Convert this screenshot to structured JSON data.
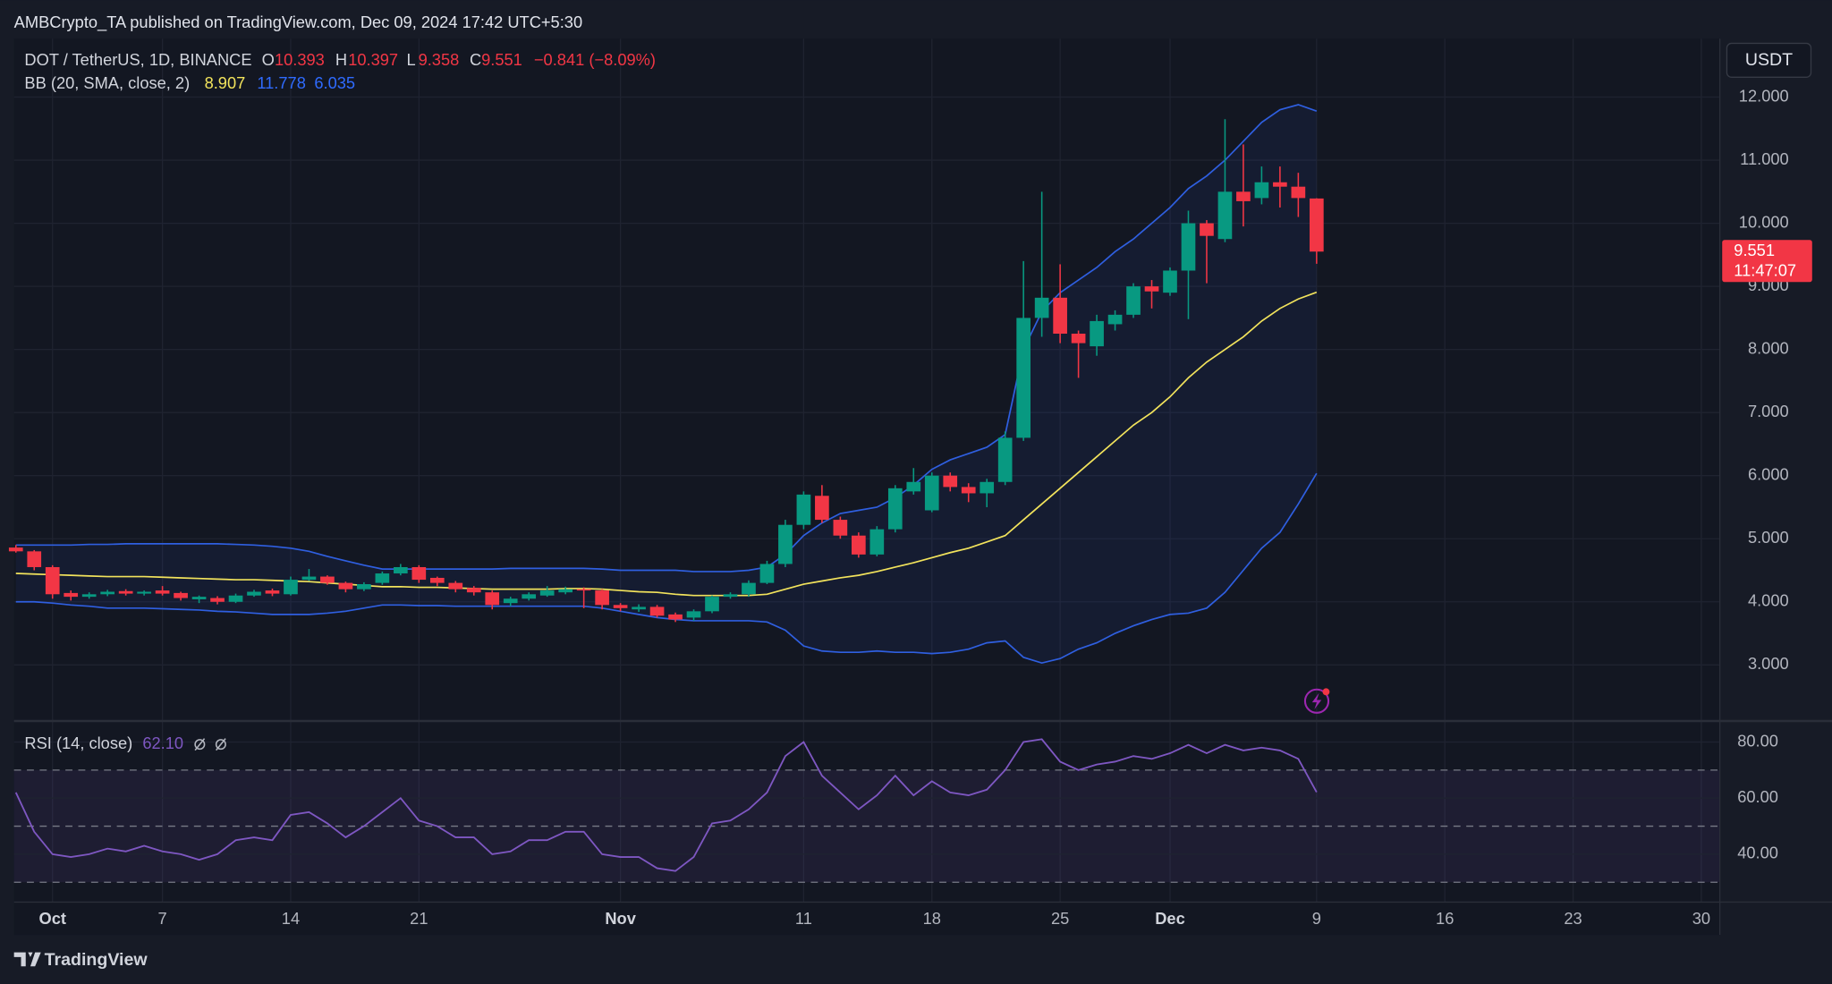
{
  "header": {
    "published": "AMBCrypto_TA published on TradingView.com, Dec 09, 2024 17:42 UTC+5:30"
  },
  "chart_data": [
    {
      "type": "candlestick",
      "title": "DOT / TetherUS, 1D, BINANCE",
      "currency": "USDT",
      "categories": [
        null,
        null,
        "Oct",
        null,
        null,
        null,
        null,
        null,
        "7",
        null,
        null,
        null,
        null,
        null,
        null,
        "14",
        null,
        null,
        null,
        null,
        null,
        null,
        "21",
        null,
        null,
        null,
        null,
        null,
        null,
        null,
        null,
        null,
        null,
        "Nov",
        null,
        null,
        null,
        null,
        null,
        null,
        null,
        null,
        null,
        "11",
        null,
        null,
        null,
        null,
        null,
        null,
        "18",
        null,
        null,
        null,
        null,
        null,
        null,
        "25",
        null,
        null,
        null,
        null,
        null,
        "Dec",
        null,
        null,
        null,
        null,
        null,
        null,
        null,
        "9",
        null,
        null,
        null,
        null,
        null,
        null,
        "16",
        null,
        null,
        null,
        null,
        null,
        null,
        "23",
        null,
        null,
        null,
        null,
        null,
        null,
        "30"
      ],
      "open": [
        4.86,
        4.8,
        4.55,
        4.14,
        4.08,
        4.12,
        4.17,
        4.13,
        4.18,
        4.14,
        4.04,
        4.06,
        4.0,
        4.1,
        4.18,
        4.12,
        4.35,
        4.4,
        4.3,
        4.2,
        4.3,
        4.45,
        4.55,
        4.38,
        4.3,
        4.22,
        4.15,
        3.98,
        4.05,
        4.1,
        4.15,
        4.2,
        4.18,
        3.95,
        3.88,
        3.92,
        3.8,
        3.75,
        3.85,
        4.08,
        4.12,
        4.3,
        4.6,
        5.22,
        5.68,
        5.3,
        5.05,
        4.75,
        5.15,
        5.75,
        5.45,
        6.0,
        5.82,
        5.72,
        5.9,
        6.6,
        8.5,
        8.82,
        8.25,
        8.05,
        8.4,
        8.55,
        9.0,
        8.9,
        9.25,
        10.0,
        9.75,
        10.5,
        10.4,
        10.65,
        10.58,
        10.393,
        null,
        null,
        null,
        null,
        null,
        null,
        null,
        null,
        null,
        null,
        null,
        null,
        null,
        null,
        null,
        null,
        null,
        null,
        null,
        null,
        null
      ],
      "high": [
        4.9,
        4.82,
        4.58,
        4.18,
        4.15,
        4.19,
        4.2,
        4.18,
        4.25,
        4.16,
        4.1,
        4.09,
        4.13,
        4.19,
        4.21,
        4.4,
        4.52,
        4.42,
        4.32,
        4.31,
        4.48,
        4.6,
        4.58,
        4.4,
        4.33,
        4.25,
        4.18,
        4.08,
        4.15,
        4.25,
        4.24,
        4.23,
        4.2,
        3.98,
        3.96,
        3.95,
        3.83,
        3.88,
        4.1,
        4.15,
        4.34,
        4.65,
        5.3,
        5.75,
        5.85,
        5.35,
        5.1,
        5.2,
        5.85,
        6.12,
        6.05,
        6.05,
        5.88,
        5.95,
        6.7,
        9.4,
        10.5,
        9.35,
        8.3,
        8.55,
        8.62,
        9.05,
        9.1,
        9.3,
        10.2,
        10.05,
        11.65,
        11.25,
        10.9,
        10.9,
        10.8,
        10.397,
        null,
        null,
        null,
        null,
        null,
        null,
        null,
        null,
        null,
        null,
        null,
        null,
        null,
        null,
        null,
        null,
        null,
        null,
        null,
        null,
        null
      ],
      "low": [
        4.78,
        4.5,
        4.05,
        4.02,
        4.05,
        4.09,
        4.1,
        4.1,
        4.1,
        4.02,
        3.98,
        3.96,
        3.98,
        4.08,
        4.09,
        4.1,
        4.33,
        4.27,
        4.15,
        4.17,
        4.27,
        4.42,
        4.3,
        4.25,
        4.15,
        4.1,
        3.88,
        3.93,
        4.02,
        4.08,
        4.12,
        3.9,
        3.88,
        3.85,
        3.84,
        3.75,
        3.68,
        3.7,
        3.82,
        4.05,
        4.08,
        4.28,
        4.55,
        5.15,
        5.25,
        5.0,
        4.7,
        4.72,
        5.1,
        5.7,
        5.42,
        5.75,
        5.58,
        5.5,
        5.85,
        6.55,
        8.2,
        8.1,
        7.55,
        7.9,
        8.3,
        8.5,
        8.65,
        8.85,
        8.48,
        9.05,
        9.7,
        9.95,
        10.3,
        10.25,
        10.1,
        9.358,
        null,
        null,
        null,
        null,
        null,
        null,
        null,
        null,
        null,
        null,
        null,
        null,
        null,
        null,
        null,
        null,
        null,
        null,
        null,
        null,
        null
      ],
      "close": [
        4.8,
        4.55,
        4.12,
        4.08,
        4.12,
        4.16,
        4.13,
        4.16,
        4.13,
        4.06,
        4.08,
        4.0,
        4.1,
        4.16,
        4.13,
        4.35,
        4.4,
        4.3,
        4.2,
        4.28,
        4.45,
        4.55,
        4.35,
        4.3,
        4.2,
        4.15,
        3.95,
        4.05,
        4.12,
        4.18,
        4.2,
        4.18,
        3.95,
        3.9,
        3.92,
        3.78,
        3.72,
        3.85,
        4.08,
        4.12,
        4.3,
        4.6,
        5.22,
        5.7,
        5.3,
        5.05,
        4.75,
        5.15,
        5.8,
        5.9,
        6.0,
        5.82,
        5.72,
        5.9,
        6.6,
        8.5,
        8.82,
        8.25,
        8.1,
        8.45,
        8.55,
        9.0,
        8.92,
        9.25,
        10.0,
        9.8,
        10.5,
        10.35,
        10.65,
        10.58,
        10.4,
        9.551,
        null,
        null,
        null,
        null,
        null,
        null,
        null,
        null,
        null,
        null,
        null,
        null,
        null,
        null,
        null,
        null,
        null,
        null,
        null,
        null,
        null
      ],
      "legend": {
        "o": "O",
        "h": "H",
        "l": "L",
        "c": "C",
        "change": "−0.841 (−8.09%)"
      },
      "countdown": "11:47:07",
      "up_color": "#089981",
      "down_color": "#f23645",
      "bollinger": {
        "title": "BB (20, SMA, close, 2)",
        "basis_color": "#f2e35c",
        "band_color": "#2f5fe0",
        "basis": [
          4.45,
          4.44,
          4.43,
          4.42,
          4.41,
          4.4,
          4.4,
          4.4,
          4.39,
          4.38,
          4.37,
          4.36,
          4.35,
          4.35,
          4.34,
          4.33,
          4.32,
          4.3,
          4.28,
          4.26,
          4.24,
          4.24,
          4.23,
          4.23,
          4.22,
          4.21,
          4.2,
          4.2,
          4.2,
          4.2,
          4.21,
          4.21,
          4.2,
          4.18,
          4.16,
          4.15,
          4.12,
          4.1,
          4.1,
          4.1,
          4.1,
          4.12,
          4.2,
          4.28,
          4.33,
          4.38,
          4.42,
          4.48,
          4.55,
          4.62,
          4.7,
          4.78,
          4.85,
          4.95,
          5.05,
          5.3,
          5.55,
          5.8,
          6.05,
          6.3,
          6.55,
          6.8,
          7.0,
          7.25,
          7.55,
          7.8,
          8.0,
          8.2,
          8.45,
          8.65,
          8.8,
          8.907,
          null,
          null,
          null,
          null,
          null,
          null,
          null,
          null,
          null,
          null,
          null,
          null,
          null,
          null,
          null,
          null,
          null,
          null,
          null,
          null,
          null
        ],
        "upper": [
          4.9,
          4.9,
          4.9,
          4.9,
          4.91,
          4.91,
          4.92,
          4.92,
          4.92,
          4.92,
          4.92,
          4.92,
          4.91,
          4.9,
          4.88,
          4.85,
          4.8,
          4.72,
          4.65,
          4.58,
          4.52,
          4.52,
          4.52,
          4.52,
          4.52,
          4.52,
          4.52,
          4.53,
          4.53,
          4.53,
          4.53,
          4.53,
          4.52,
          4.5,
          4.5,
          4.5,
          4.5,
          4.48,
          4.48,
          4.48,
          4.5,
          4.55,
          4.75,
          5.05,
          5.25,
          5.4,
          5.45,
          5.5,
          5.65,
          5.85,
          6.1,
          6.25,
          6.35,
          6.45,
          6.65,
          8.0,
          8.6,
          8.9,
          9.1,
          9.3,
          9.55,
          9.75,
          10.0,
          10.25,
          10.55,
          10.75,
          11.0,
          11.3,
          11.6,
          11.8,
          11.88,
          11.778,
          null,
          null,
          null,
          null,
          null,
          null,
          null,
          null,
          null,
          null,
          null,
          null,
          null,
          null,
          null,
          null,
          null,
          null,
          null,
          null,
          null
        ],
        "lower": [
          4.0,
          4.0,
          3.98,
          3.95,
          3.93,
          3.9,
          3.9,
          3.9,
          3.89,
          3.88,
          3.87,
          3.85,
          3.84,
          3.82,
          3.8,
          3.8,
          3.8,
          3.82,
          3.85,
          3.9,
          3.95,
          3.95,
          3.94,
          3.94,
          3.93,
          3.93,
          3.93,
          3.93,
          3.93,
          3.93,
          3.93,
          3.93,
          3.9,
          3.85,
          3.8,
          3.75,
          3.72,
          3.7,
          3.7,
          3.7,
          3.7,
          3.68,
          3.55,
          3.3,
          3.22,
          3.2,
          3.2,
          3.22,
          3.2,
          3.2,
          3.18,
          3.2,
          3.25,
          3.35,
          3.38,
          3.12,
          3.03,
          3.1,
          3.25,
          3.35,
          3.5,
          3.62,
          3.72,
          3.8,
          3.82,
          3.9,
          4.15,
          4.5,
          4.85,
          5.1,
          5.55,
          6.035,
          null,
          null,
          null,
          null,
          null,
          null,
          null,
          null,
          null,
          null,
          null,
          null,
          null,
          null,
          null,
          null,
          null,
          null,
          null,
          null,
          null
        ]
      },
      "ylim": [
        2.185,
        12.926
      ],
      "yticks": [
        {
          "value": 3,
          "label": "3.000"
        },
        {
          "value": 4,
          "label": "4.000"
        },
        {
          "value": 5,
          "label": "5.000"
        },
        {
          "value": 6,
          "label": "6.000"
        },
        {
          "value": 7,
          "label": "7.000"
        },
        {
          "value": 8,
          "label": "8.000"
        },
        {
          "value": 9,
          "label": "9.000"
        },
        {
          "value": 10,
          "label": "10.000"
        },
        {
          "value": 11,
          "label": "11.000"
        },
        {
          "value": 12,
          "label": "12.000"
        }
      ],
      "grid": true
    },
    {
      "type": "line",
      "title": "RSI (14, close)",
      "color": "#7e57c2",
      "values": [
        62,
        48,
        40,
        39,
        40,
        42,
        41,
        43,
        41,
        40,
        38,
        40,
        45,
        46,
        45,
        54,
        55,
        51,
        46,
        50,
        55,
        60,
        52,
        50,
        46,
        46,
        40,
        41,
        45,
        45,
        48,
        48,
        40,
        39,
        39,
        35,
        34,
        39,
        51,
        52,
        56,
        62,
        75,
        80,
        68,
        62,
        56,
        61,
        68,
        61,
        66,
        62,
        61,
        63,
        70,
        80,
        81,
        73,
        70,
        72,
        73,
        75,
        74,
        76,
        79,
        76,
        79,
        77,
        78,
        77,
        74,
        62.1,
        null,
        null,
        null,
        null,
        null,
        null,
        null,
        null,
        null,
        null,
        null,
        null,
        null,
        null,
        null,
        null,
        null,
        null,
        null,
        null,
        null
      ],
      "last_value_label": "62.10",
      "levels": [
        30,
        50,
        70
      ],
      "ylim": [
        23.75,
        85
      ],
      "yticks": [
        {
          "value": 40,
          "label": "40.00"
        },
        {
          "value": 60,
          "label": "60.00"
        },
        {
          "value": 80,
          "label": "80.00"
        }
      ]
    }
  ],
  "footer": {
    "brand": "TradingView"
  }
}
